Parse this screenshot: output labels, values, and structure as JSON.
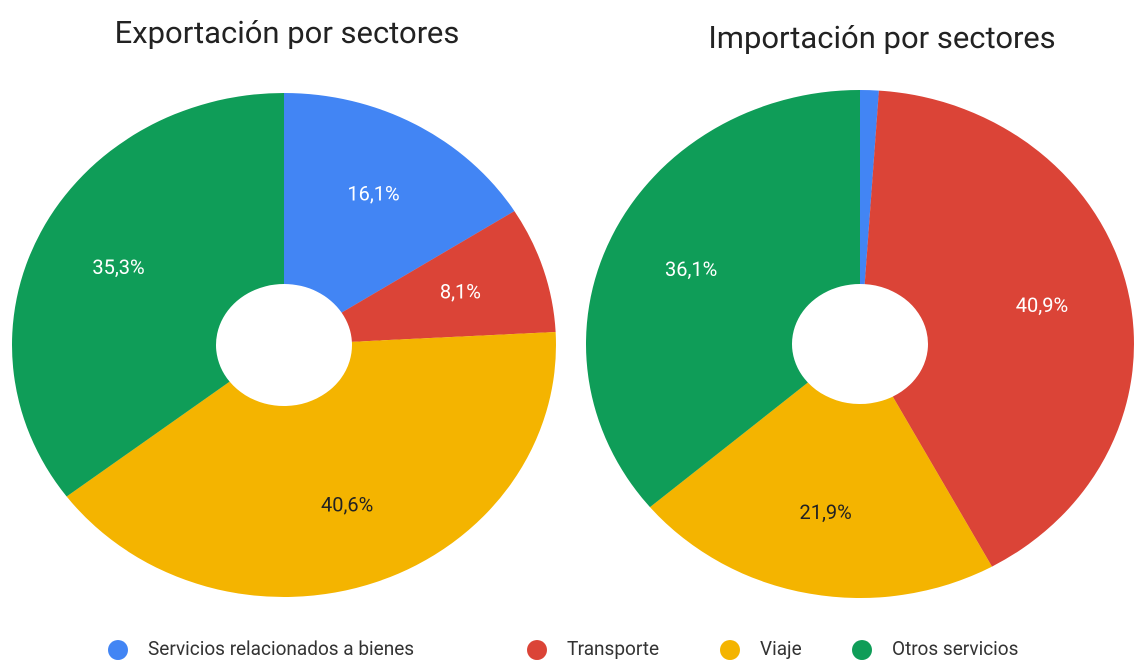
{
  "chart_data": [
    {
      "type": "pie",
      "title": "Exportación por sectores",
      "categories": [
        "Servicios relacionados a bienes",
        "Transporte",
        "Viaje",
        "Otros servicios"
      ],
      "colors": [
        "#4285f4",
        "#db4437",
        "#f4b400",
        "#0f9d58"
      ],
      "values": [
        16.1,
        8.1,
        40.6,
        35.3
      ],
      "value_labels": [
        "16,1%",
        "8,1%",
        "40,6%",
        "35,3%"
      ]
    },
    {
      "type": "pie",
      "title": "Importación por sectores",
      "categories": [
        "Servicios relacionados a bienes",
        "Transporte",
        "Viaje",
        "Otros servicios"
      ],
      "colors": [
        "#4285f4",
        "#db4437",
        "#f4b400",
        "#0f9d58"
      ],
      "values": [
        1.1,
        40.9,
        21.9,
        36.1
      ],
      "value_labels": [
        null,
        "40,9%",
        "21,9%",
        "36,1%"
      ]
    }
  ]
}
